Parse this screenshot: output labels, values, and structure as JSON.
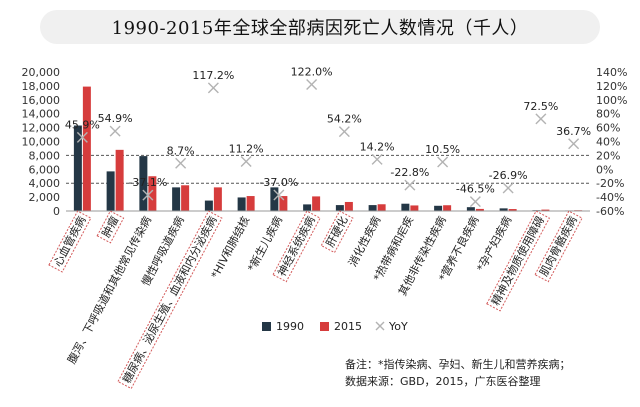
{
  "title": "1990-2015年全球全部病因死亡人数情况（千人）",
  "chart_data": {
    "type": "bar",
    "title": "1990-2015年全球全部病因死亡人数情况（千人）",
    "categories": [
      "心血管疾病",
      "肿瘤",
      "腹泻、下呼吸道和其他常见传染病",
      "慢性呼吸道疾病",
      "糖尿病、泌尿生殖、血液和内分泌疾病",
      "*HIV和肺结核",
      "*新生儿疾病",
      "神经系统疾病",
      "肝硬化",
      "消化性疾病",
      "*热带病和疟疾",
      "其他非传染性疾病",
      "*营养不良疾病",
      "*孕产妇疾病",
      "精神及物质使用障碍",
      "肌肉骨骼疾病"
    ],
    "boxed_categories": [
      0,
      1,
      4,
      7,
      8,
      14,
      15
    ],
    "series": [
      {
        "name": "1990",
        "values": [
          12300,
          5700,
          7900,
          3400,
          1500,
          1950,
          3400,
          950,
          850,
          850,
          1050,
          750,
          550,
          380,
          110,
          80
        ],
        "color": "#243746"
      },
      {
        "name": "2015",
        "values": [
          17900,
          8800,
          5000,
          3700,
          3400,
          2150,
          2150,
          2100,
          1300,
          970,
          800,
          830,
          300,
          280,
          200,
          110
        ],
        "color": "#d63c3c"
      }
    ],
    "yoy": {
      "name": "YoY",
      "values": [
        45.9,
        54.9,
        -37.1,
        8.7,
        117.2,
        11.2,
        -37.0,
        122.0,
        54.2,
        14.2,
        -22.8,
        10.5,
        -46.5,
        -26.9,
        72.5,
        36.7
      ],
      "labels": [
        "45.9%",
        "54.9%",
        "-37.1%",
        "8.7%",
        "117.2%",
        "11.2%",
        "-37.0%",
        "122.0%",
        "54.2%",
        "14.2%",
        "-22.8%",
        "10.5%",
        "-46.5%",
        "-26.9%",
        "72.5%",
        "36.7%"
      ]
    },
    "y_left": {
      "min": 0,
      "max": 20000,
      "ticks": [
        "0",
        "2,000",
        "4,000",
        "6,000",
        "8,000",
        "10,000",
        "12,000",
        "14,000",
        "16,000",
        "18,000",
        "20,000"
      ]
    },
    "y_right": {
      "min": -60,
      "max": 140,
      "ticks": [
        "-60%",
        "-40%",
        "-20%",
        "0%",
        "20%",
        "40%",
        "60%",
        "80%",
        "100%",
        "120%",
        "140%"
      ]
    },
    "reference_lines_pct": [
      20,
      -20
    ],
    "grid": false,
    "legend_position": "bottom-center",
    "colors": {
      "yoy_marker": "#b3b3b3",
      "axis": "#999999",
      "reference_line": "#555555",
      "label_box": "#d35a5a"
    }
  },
  "legend": {
    "label_1990": "1990",
    "label_2015": "2015",
    "label_yoy": "YoY"
  },
  "notes": {
    "line1": "备注：*指传染病、孕妇、新生儿和营养疾病；",
    "line2": "数据来源：GBD，2015，广东医谷整理"
  }
}
